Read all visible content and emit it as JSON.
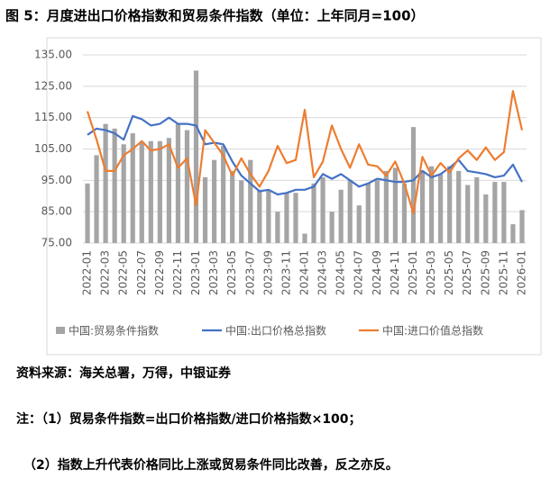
{
  "chart_data": {
    "type": "combo",
    "title": "图 5：月度进出口价格指数和贸易条件指数（单位：上年同月=100）",
    "categories": [
      "2022-01",
      null,
      "2022-03",
      null,
      "2022-05",
      null,
      "2022-07",
      null,
      "2022-09",
      null,
      "2022-11",
      null,
      "2023-01",
      null,
      "2023-03",
      null,
      "2023-05",
      null,
      "2023-07",
      null,
      "2023-09",
      null,
      "2023-11",
      null,
      "2024-01",
      null,
      "2024-03",
      null,
      "2024-05",
      null,
      "2024-07",
      null,
      "2024-09",
      null,
      "2024-11",
      null,
      "2025-01",
      null,
      "2025-03",
      null,
      "2025-05",
      null,
      "2025-07",
      null,
      "2025-09",
      null,
      "2025-11",
      null,
      "2026-01"
    ],
    "series": [
      {
        "name": "中国:贸易条件指数",
        "type": "bar",
        "color": "#a5a5a5",
        "values": [
          94,
          103,
          113,
          111.5,
          106.5,
          110,
          107,
          107.5,
          107.5,
          108.5,
          113,
          111,
          130,
          96,
          101.5,
          106,
          98,
          95,
          101.5,
          92,
          92,
          85,
          91,
          91,
          78,
          94,
          96,
          85,
          92,
          95,
          87,
          94,
          95,
          98,
          99,
          94,
          112,
          98,
          99.5,
          97,
          99.5,
          98,
          93.5,
          96,
          90.5,
          94.5,
          94.5,
          81,
          85.5
        ]
      },
      {
        "name": "中国:出口价格总指数",
        "type": "line",
        "color": "#4472c4",
        "values": [
          109.5,
          111.5,
          111,
          110,
          108,
          115.5,
          114.5,
          112.5,
          113,
          115,
          113,
          113,
          112.5,
          106.5,
          107,
          106.5,
          101,
          96.5,
          94,
          91.5,
          92,
          90.5,
          91,
          92,
          92,
          93,
          97,
          95.5,
          97,
          95,
          93,
          94,
          95.5,
          95,
          94.5,
          94.5,
          95,
          98,
          96,
          97,
          99,
          101.5,
          98,
          97.5,
          97,
          96,
          96.5,
          100,
          94.5
        ]
      },
      {
        "name": "中国:进口价值总指数",
        "type": "line",
        "color": "#ed7d31",
        "values": [
          117,
          108,
          98,
          98,
          103,
          105,
          107.5,
          104.5,
          105,
          106.5,
          99,
          102,
          87,
          111,
          107,
          103,
          96.5,
          102,
          97,
          93,
          98,
          106,
          100.5,
          101.5,
          117.5,
          96,
          101,
          112.5,
          105,
          99,
          106.5,
          100,
          99.5,
          96.5,
          101,
          94,
          84.5,
          102.5,
          96.5,
          100.5,
          97.5,
          102,
          104.5,
          101.5,
          105.5,
          101.5,
          104,
          123.5,
          111
        ]
      }
    ],
    "ylim": [
      75,
      135
    ],
    "yticks": [
      {
        "value": 75,
        "label": "75.00"
      },
      {
        "value": 85,
        "label": "85.00"
      },
      {
        "value": 95,
        "label": "95.00"
      },
      {
        "value": 105,
        "label": "105.00"
      },
      {
        "value": 115,
        "label": "115.00"
      },
      {
        "value": 125,
        "label": "125.00"
      },
      {
        "value": 135,
        "label": "135.00"
      }
    ],
    "grid": true,
    "legend": "bottom"
  },
  "notes": [
    "资料来源：海关总署，万得，中银证券",
    "注：（1）贸易条件指数=出口价格指数/进口价格指数×100；",
    "（2）指数上升代表价格同比上涨或贸易条件同比改善，反之亦反。"
  ]
}
